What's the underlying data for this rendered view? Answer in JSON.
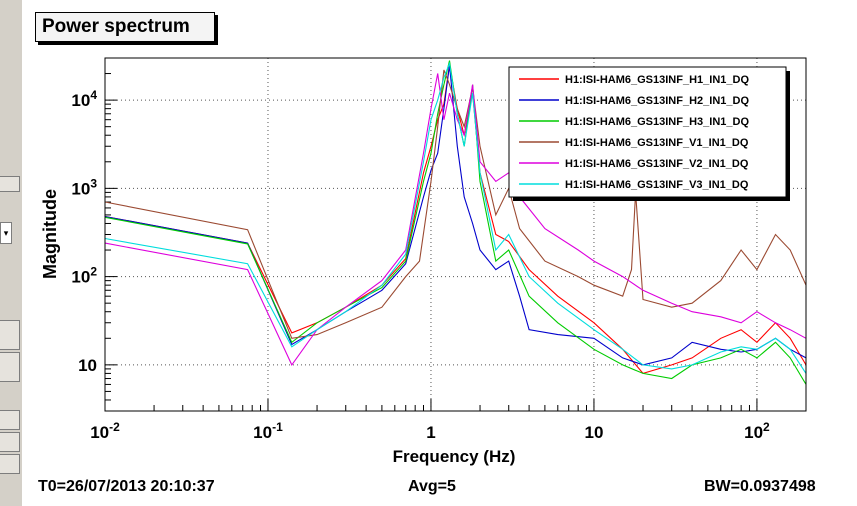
{
  "window": {
    "title": "Power spectrum"
  },
  "footer": {
    "t0": "T0=26/07/2013 20:10:37",
    "avg": "Avg=5",
    "bw": "BW=0.0937498"
  },
  "colors": {
    "background": "#ffffff",
    "frame": "#000000"
  },
  "chart_data": {
    "type": "line",
    "title": "Power spectrum",
    "xlabel": "Frequency (Hz)",
    "ylabel": "Magnitude",
    "xscale": "log",
    "yscale": "log",
    "xlim": [
      0.01,
      200
    ],
    "ylim": [
      3,
      30000
    ],
    "grid": true,
    "legend": "top-right",
    "xticks": [
      {
        "v": 0.01,
        "base": "10",
        "exp": "-2"
      },
      {
        "v": 0.1,
        "base": "10",
        "exp": "-1"
      },
      {
        "v": 1,
        "base": "1",
        "exp": ""
      },
      {
        "v": 10,
        "base": "10",
        "exp": ""
      },
      {
        "v": 100,
        "base": "10",
        "exp": "2"
      }
    ],
    "yticks": [
      {
        "v": 10,
        "base": "10",
        "exp": ""
      },
      {
        "v": 100,
        "base": "10",
        "exp": "2"
      },
      {
        "v": 1000,
        "base": "10",
        "exp": "3"
      },
      {
        "v": 10000,
        "base": "10",
        "exp": "4"
      }
    ],
    "series": [
      {
        "name": "H1:ISI-HAM6_GS13INF_H1_IN1_DQ",
        "color": "#ff0000",
        "points": [
          [
            0.01,
            480
          ],
          [
            0.075,
            240
          ],
          [
            0.14,
            23
          ],
          [
            0.2,
            30
          ],
          [
            0.3,
            45
          ],
          [
            0.5,
            80
          ],
          [
            0.7,
            160
          ],
          [
            0.9,
            1500
          ],
          [
            1.0,
            3000
          ],
          [
            1.1,
            6000
          ],
          [
            1.2,
            9000
          ],
          [
            1.3,
            25000
          ],
          [
            1.45,
            8000
          ],
          [
            1.6,
            4000
          ],
          [
            1.8,
            12000
          ],
          [
            2.0,
            1500
          ],
          [
            2.5,
            300
          ],
          [
            3.0,
            250
          ],
          [
            4,
            120
          ],
          [
            6,
            60
          ],
          [
            10,
            30
          ],
          [
            15,
            15
          ],
          [
            20,
            8
          ],
          [
            30,
            10
          ],
          [
            40,
            12
          ],
          [
            60,
            20
          ],
          [
            80,
            25
          ],
          [
            100,
            18
          ],
          [
            130,
            30
          ],
          [
            160,
            20
          ],
          [
            200,
            10
          ]
        ]
      },
      {
        "name": "H1:ISI-HAM6_GS13INF_H2_IN1_DQ",
        "color": "#0000cc",
        "points": [
          [
            0.01,
            480
          ],
          [
            0.075,
            240
          ],
          [
            0.14,
            17
          ],
          [
            0.2,
            25
          ],
          [
            0.3,
            40
          ],
          [
            0.5,
            70
          ],
          [
            0.7,
            140
          ],
          [
            0.9,
            800
          ],
          [
            1.0,
            1600
          ],
          [
            1.1,
            2500
          ],
          [
            1.2,
            8000
          ],
          [
            1.3,
            25000
          ],
          [
            1.45,
            3000
          ],
          [
            1.6,
            800
          ],
          [
            1.8,
            400
          ],
          [
            2.0,
            200
          ],
          [
            2.5,
            120
          ],
          [
            3.0,
            150
          ],
          [
            3.5,
            60
          ],
          [
            4,
            25
          ],
          [
            6,
            22
          ],
          [
            10,
            20
          ],
          [
            15,
            12
          ],
          [
            20,
            10
          ],
          [
            30,
            12
          ],
          [
            40,
            18
          ],
          [
            60,
            15
          ],
          [
            80,
            14
          ],
          [
            100,
            15
          ],
          [
            130,
            20
          ],
          [
            160,
            15
          ],
          [
            200,
            12
          ]
        ]
      },
      {
        "name": "H1:ISI-HAM6_GS13INF_H3_IN1_DQ",
        "color": "#00cc00",
        "points": [
          [
            0.01,
            470
          ],
          [
            0.075,
            235
          ],
          [
            0.14,
            18
          ],
          [
            0.2,
            30
          ],
          [
            0.3,
            45
          ],
          [
            0.5,
            75
          ],
          [
            0.7,
            150
          ],
          [
            0.9,
            1200
          ],
          [
            1.0,
            2500
          ],
          [
            1.1,
            7000
          ],
          [
            1.2,
            15000
          ],
          [
            1.3,
            28000
          ],
          [
            1.45,
            7000
          ],
          [
            1.6,
            3000
          ],
          [
            1.8,
            15000
          ],
          [
            2.0,
            1200
          ],
          [
            2.5,
            150
          ],
          [
            3.0,
            200
          ],
          [
            4,
            60
          ],
          [
            6,
            30
          ],
          [
            10,
            15
          ],
          [
            15,
            10
          ],
          [
            20,
            8
          ],
          [
            30,
            7
          ],
          [
            40,
            10
          ],
          [
            60,
            12
          ],
          [
            80,
            15
          ],
          [
            100,
            12
          ],
          [
            130,
            18
          ],
          [
            160,
            12
          ],
          [
            200,
            6
          ]
        ]
      },
      {
        "name": "H1:ISI-HAM6_GS13INF_V1_IN1_DQ",
        "color": "#9b4a32",
        "points": [
          [
            0.01,
            700
          ],
          [
            0.075,
            340
          ],
          [
            0.14,
            20
          ],
          [
            0.2,
            22
          ],
          [
            0.3,
            30
          ],
          [
            0.5,
            45
          ],
          [
            0.7,
            100
          ],
          [
            0.85,
            150
          ],
          [
            1.0,
            1200
          ],
          [
            1.1,
            5000
          ],
          [
            1.2,
            22000
          ],
          [
            1.3,
            15000
          ],
          [
            1.45,
            8000
          ],
          [
            1.6,
            5000
          ],
          [
            1.8,
            14000
          ],
          [
            2.0,
            3000
          ],
          [
            2.5,
            500
          ],
          [
            3.0,
            1000
          ],
          [
            3.5,
            350
          ],
          [
            5,
            150
          ],
          [
            8,
            100
          ],
          [
            10,
            80
          ],
          [
            15,
            60
          ],
          [
            17,
            120
          ],
          [
            18,
            900
          ],
          [
            20,
            55
          ],
          [
            30,
            45
          ],
          [
            40,
            50
          ],
          [
            60,
            90
          ],
          [
            80,
            200
          ],
          [
            100,
            120
          ],
          [
            130,
            300
          ],
          [
            160,
            200
          ],
          [
            200,
            80
          ]
        ]
      },
      {
        "name": "H1:ISI-HAM6_GS13INF_V2_IN1_DQ",
        "color": "#dd00dd",
        "points": [
          [
            0.01,
            240
          ],
          [
            0.075,
            120
          ],
          [
            0.14,
            10
          ],
          [
            0.2,
            25
          ],
          [
            0.3,
            45
          ],
          [
            0.5,
            90
          ],
          [
            0.7,
            200
          ],
          [
            0.9,
            2500
          ],
          [
            1.0,
            8000
          ],
          [
            1.1,
            20000
          ],
          [
            1.2,
            6000
          ],
          [
            1.3,
            12000
          ],
          [
            1.45,
            6000
          ],
          [
            1.6,
            4000
          ],
          [
            1.8,
            15000
          ],
          [
            2.0,
            2000
          ],
          [
            2.5,
            1200
          ],
          [
            3.0,
            1500
          ],
          [
            3.5,
            800
          ],
          [
            5,
            350
          ],
          [
            8,
            200
          ],
          [
            10,
            150
          ],
          [
            15,
            100
          ],
          [
            20,
            70
          ],
          [
            30,
            50
          ],
          [
            40,
            40
          ],
          [
            60,
            35
          ],
          [
            80,
            30
          ],
          [
            100,
            40
          ],
          [
            130,
            30
          ],
          [
            160,
            25
          ],
          [
            200,
            20
          ]
        ]
      },
      {
        "name": "H1:ISI-HAM6_GS13INF_V3_IN1_DQ",
        "color": "#00dddd",
        "points": [
          [
            0.01,
            270
          ],
          [
            0.075,
            140
          ],
          [
            0.14,
            16
          ],
          [
            0.2,
            25
          ],
          [
            0.3,
            40
          ],
          [
            0.5,
            80
          ],
          [
            0.7,
            180
          ],
          [
            0.9,
            2000
          ],
          [
            1.0,
            6000
          ],
          [
            1.1,
            10000
          ],
          [
            1.2,
            18000
          ],
          [
            1.3,
            26000
          ],
          [
            1.45,
            7000
          ],
          [
            1.6,
            3000
          ],
          [
            1.8,
            12000
          ],
          [
            2.0,
            1500
          ],
          [
            2.5,
            200
          ],
          [
            3.0,
            300
          ],
          [
            4,
            100
          ],
          [
            6,
            50
          ],
          [
            10,
            25
          ],
          [
            15,
            15
          ],
          [
            20,
            10
          ],
          [
            30,
            9
          ],
          [
            40,
            10
          ],
          [
            60,
            14
          ],
          [
            80,
            16
          ],
          [
            100,
            15
          ],
          [
            130,
            20
          ],
          [
            160,
            15
          ],
          [
            200,
            8
          ]
        ]
      }
    ]
  }
}
